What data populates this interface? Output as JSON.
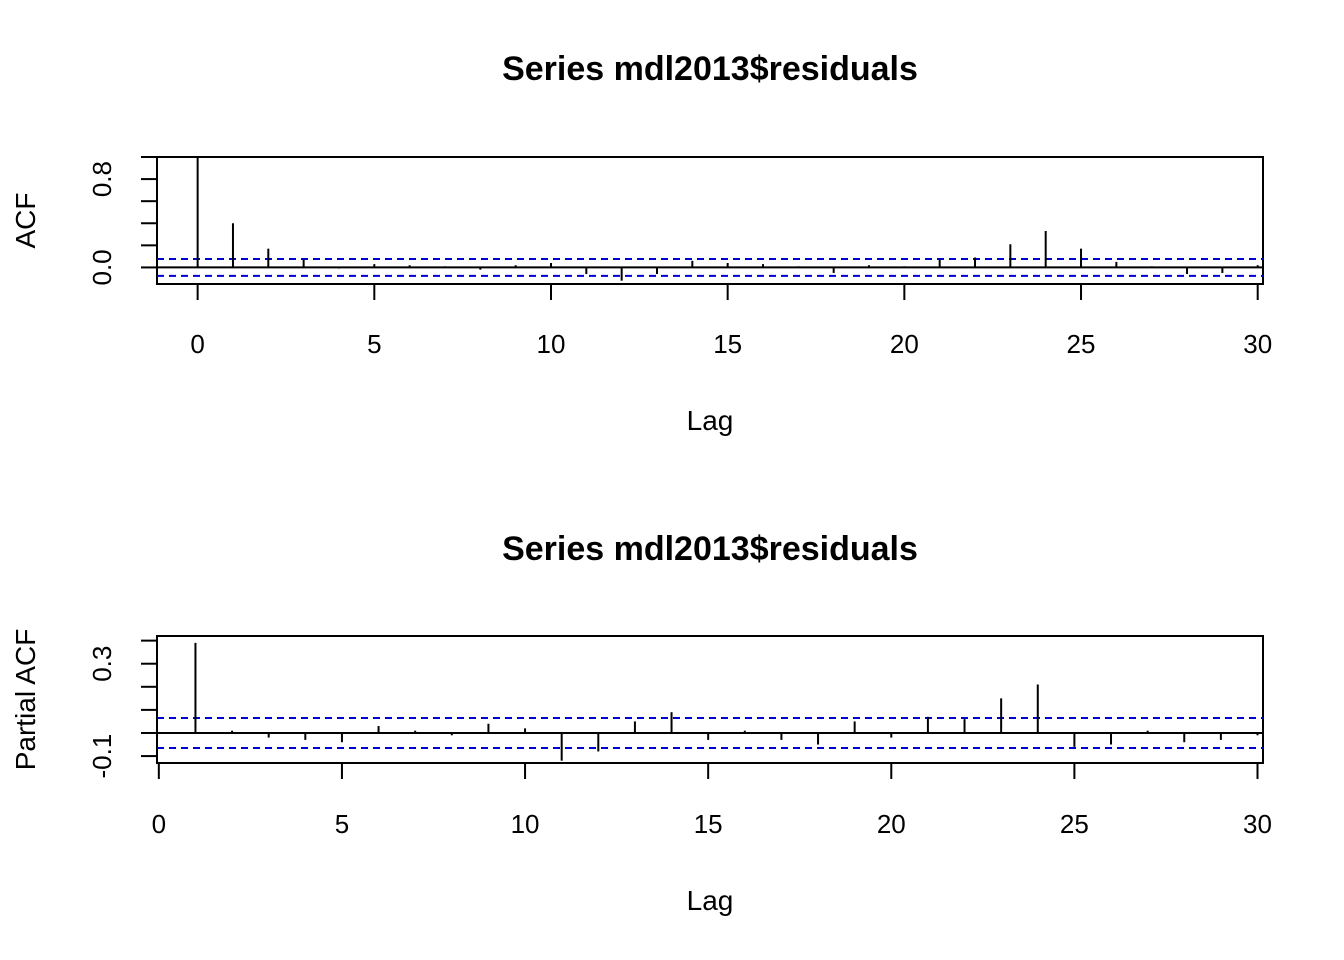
{
  "chart_data": [
    {
      "type": "bar",
      "title": "Series  mdl2013$residuals",
      "xlabel": "Lag",
      "ylabel": "ACF",
      "xlim": [
        -1.15,
        30.15
      ],
      "ylim": [
        -0.15,
        1.0
      ],
      "x_ticks": [
        0,
        5,
        10,
        15,
        20,
        25,
        30
      ],
      "y_ticks": [
        0.0,
        0.2,
        0.4,
        0.6,
        0.8,
        1.0
      ],
      "y_tick_labels": [
        "0.0",
        "0.8"
      ],
      "y_tick_labeled_values": [
        0.0,
        0.8
      ],
      "confidence_limit": 0.076,
      "confidence_color": "#0000cc",
      "lags": [
        0,
        1,
        2,
        3,
        4,
        5,
        6,
        7,
        8,
        9,
        10,
        11,
        12,
        13,
        14,
        15,
        16,
        17,
        18,
        19,
        20,
        21,
        22,
        23,
        24,
        25,
        26,
        27,
        28,
        29,
        30
      ],
      "values": [
        1.0,
        0.4,
        0.17,
        0.07,
        -0.01,
        0.03,
        0.02,
        0.01,
        -0.02,
        0.02,
        0.04,
        -0.06,
        -0.12,
        -0.06,
        0.06,
        0.04,
        0.03,
        0.01,
        -0.05,
        0.02,
        0.01,
        0.07,
        0.09,
        0.21,
        0.33,
        0.17,
        0.05,
        0.01,
        -0.06,
        -0.05,
        0.02
      ]
    },
    {
      "type": "bar",
      "title": "Series  mdl2013$residuals",
      "xlabel": "Lag",
      "ylabel": "Partial ACF",
      "xlim": [
        -0.05,
        30.15
      ],
      "ylim": [
        -0.13,
        0.42
      ],
      "x_ticks": [
        0,
        5,
        10,
        15,
        20,
        25,
        30
      ],
      "y_ticks": [
        -0.1,
        0.0,
        0.1,
        0.2,
        0.3,
        0.4
      ],
      "y_tick_labels": [
        "-0.1",
        "0.3"
      ],
      "y_tick_labeled_values": [
        -0.1,
        0.3
      ],
      "confidence_limit": 0.065,
      "confidence_color": "#0000cc",
      "lags": [
        1,
        2,
        3,
        4,
        5,
        6,
        7,
        8,
        9,
        10,
        11,
        12,
        13,
        14,
        15,
        16,
        17,
        18,
        19,
        20,
        21,
        22,
        23,
        24,
        25,
        26,
        27,
        28,
        29,
        30
      ],
      "values": [
        0.39,
        0.01,
        -0.02,
        -0.03,
        -0.04,
        0.03,
        0.01,
        -0.01,
        0.04,
        0.02,
        -0.12,
        -0.08,
        0.05,
        0.09,
        -0.03,
        0.01,
        -0.03,
        -0.05,
        0.05,
        -0.02,
        0.07,
        0.06,
        0.15,
        0.21,
        -0.06,
        -0.05,
        0.01,
        -0.04,
        -0.03,
        -0.01
      ]
    }
  ]
}
